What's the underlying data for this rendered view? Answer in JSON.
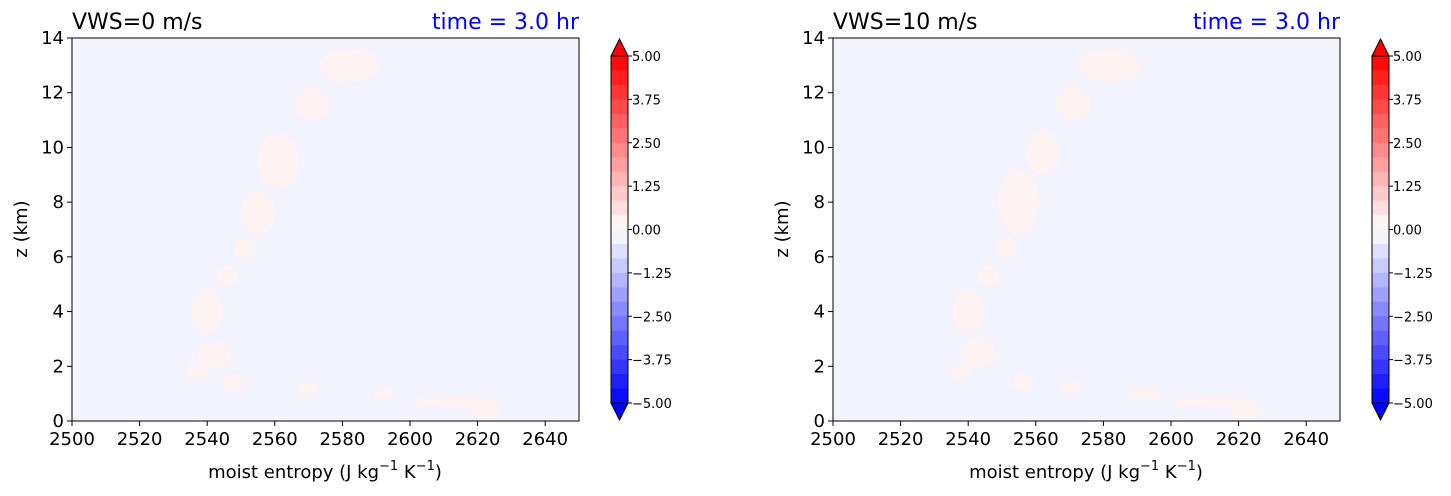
{
  "chart_data": [
    {
      "type": "contour",
      "title_left": "VWS=0 m/s",
      "title_right": "time = 3.0 hr",
      "title_right_color": "#0000ff",
      "xlabel": "moist entropy (J kg",
      "xlabel_unit1": "−1",
      "xlabel_mid": " K",
      "xlabel_unit2": "−1",
      "xlabel_end": ")",
      "ylabel": "z (km)",
      "xlim": [
        2500,
        2650
      ],
      "ylim": [
        0,
        14
      ],
      "xticks": [
        "2500",
        "2520",
        "2540",
        "2560",
        "2580",
        "2600",
        "2620",
        "2640"
      ],
      "yticks": [
        "0",
        "2",
        "4",
        "6",
        "8",
        "10",
        "12",
        "14"
      ],
      "background_color": "#f4f4fe",
      "blob_color": "#fff3f3",
      "blobs": [
        {
          "x": 2540,
          "y": 4.0,
          "rx": 4.5,
          "ry": 0.8
        },
        {
          "x": 2542,
          "y": 2.4,
          "rx": 5.0,
          "ry": 0.5
        },
        {
          "x": 2537,
          "y": 1.8,
          "rx": 3.0,
          "ry": 0.3
        },
        {
          "x": 2548,
          "y": 1.4,
          "rx": 3.0,
          "ry": 0.3
        },
        {
          "x": 2546,
          "y": 5.3,
          "rx": 3.0,
          "ry": 0.4
        },
        {
          "x": 2551,
          "y": 6.3,
          "rx": 3.0,
          "ry": 0.4
        },
        {
          "x": 2555,
          "y": 7.6,
          "rx": 5.0,
          "ry": 0.8
        },
        {
          "x": 2561,
          "y": 9.5,
          "rx": 6.0,
          "ry": 1.0
        },
        {
          "x": 2571,
          "y": 11.6,
          "rx": 5.0,
          "ry": 0.6
        },
        {
          "x": 2582,
          "y": 13.0,
          "rx": 9.0,
          "ry": 0.6
        },
        {
          "x": 2570,
          "y": 1.2,
          "rx": 3.0,
          "ry": 0.25
        },
        {
          "x": 2592,
          "y": 1.0,
          "rx": 3.0,
          "ry": 0.2
        },
        {
          "x": 2613,
          "y": 0.7,
          "rx": 12.0,
          "ry": 0.2
        },
        {
          "x": 2622,
          "y": 0.4,
          "rx": 5.0,
          "ry": 0.3
        }
      ],
      "colorbar": {
        "ticks": [
          "5.00",
          "3.75",
          "2.50",
          "1.25",
          "0.00",
          "−1.25",
          "−2.50",
          "−3.75",
          "−5.00"
        ],
        "range": [
          -5,
          5
        ],
        "extend": "both",
        "cmap": "bwr"
      }
    },
    {
      "type": "contour",
      "title_left": "VWS=10 m/s",
      "title_right": "time = 3.0 hr",
      "title_right_color": "#0000ff",
      "xlabel": "moist entropy (J kg",
      "xlabel_unit1": "−1",
      "xlabel_mid": " K",
      "xlabel_unit2": "−1",
      "xlabel_end": ")",
      "ylabel": "z (km)",
      "xlim": [
        2500,
        2650
      ],
      "ylim": [
        0,
        14
      ],
      "xticks": [
        "2500",
        "2520",
        "2540",
        "2560",
        "2580",
        "2600",
        "2620",
        "2640"
      ],
      "yticks": [
        "0",
        "2",
        "4",
        "6",
        "8",
        "10",
        "12",
        "14"
      ],
      "background_color": "#f4f4fe",
      "blob_color": "#fff3f3",
      "blobs": [
        {
          "x": 2540,
          "y": 4.0,
          "rx": 4.5,
          "ry": 0.8
        },
        {
          "x": 2543,
          "y": 2.5,
          "rx": 5.0,
          "ry": 0.5
        },
        {
          "x": 2538,
          "y": 1.8,
          "rx": 3.0,
          "ry": 0.3
        },
        {
          "x": 2556,
          "y": 1.4,
          "rx": 3.0,
          "ry": 0.3
        },
        {
          "x": 2546,
          "y": 5.3,
          "rx": 3.0,
          "ry": 0.4
        },
        {
          "x": 2551,
          "y": 6.3,
          "rx": 3.0,
          "ry": 0.4
        },
        {
          "x": 2555,
          "y": 8.0,
          "rx": 6.0,
          "ry": 1.2
        },
        {
          "x": 2562,
          "y": 9.8,
          "rx": 5.0,
          "ry": 0.8
        },
        {
          "x": 2571,
          "y": 11.6,
          "rx": 5.0,
          "ry": 0.6
        },
        {
          "x": 2582,
          "y": 13.0,
          "rx": 9.0,
          "ry": 0.6
        },
        {
          "x": 2570,
          "y": 1.2,
          "rx": 3.0,
          "ry": 0.25
        },
        {
          "x": 2592,
          "y": 1.0,
          "rx": 5.0,
          "ry": 0.2
        },
        {
          "x": 2613,
          "y": 0.7,
          "rx": 12.0,
          "ry": 0.2
        },
        {
          "x": 2622,
          "y": 0.4,
          "rx": 5.0,
          "ry": 0.3
        }
      ],
      "colorbar": {
        "ticks": [
          "5.00",
          "3.75",
          "2.50",
          "1.25",
          "0.00",
          "−1.25",
          "−2.50",
          "−3.75",
          "−5.00"
        ],
        "range": [
          -5,
          5
        ],
        "extend": "both",
        "cmap": "bwr"
      }
    }
  ]
}
